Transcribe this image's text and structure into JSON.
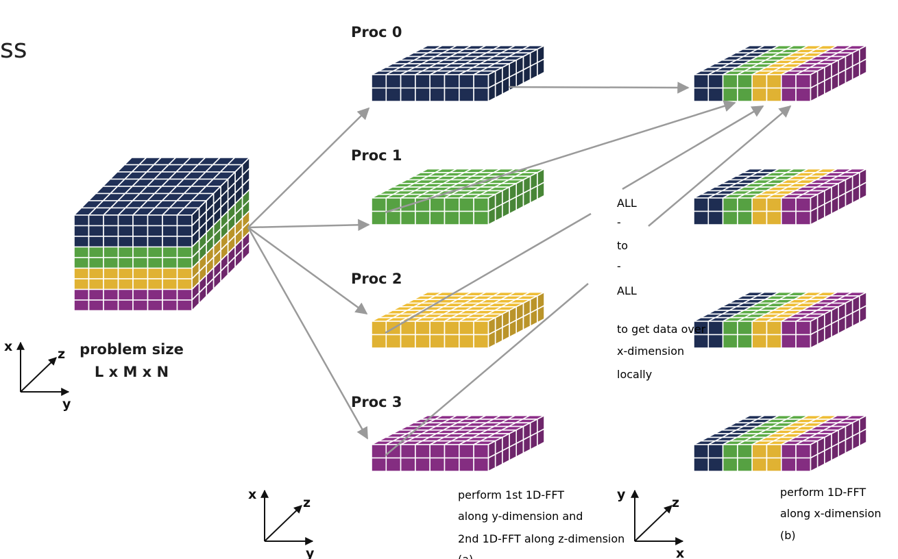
{
  "colors": {
    "navy": "#1f2f55",
    "green": "#5aa845",
    "yellow": "#e9b935",
    "purple": "#8a2f86",
    "arrow": "#9a9a9a",
    "grid": "#ffffff"
  },
  "header_fragment": "ss",
  "cube": {
    "caption_line1": "problem size",
    "caption_line2": "L x M x N",
    "axis": {
      "up": "x",
      "depth": "z",
      "right": "y"
    }
  },
  "procs": [
    {
      "label": "Proc 0",
      "color": "navy"
    },
    {
      "label": "Proc 1",
      "color": "green"
    },
    {
      "label": "Proc 2",
      "color": "yellow"
    },
    {
      "label": "Proc 3",
      "color": "purple"
    }
  ],
  "all_to_all": {
    "lines": [
      "ALL",
      "-",
      "to",
      "-",
      "ALL"
    ],
    "note": [
      "to get data over",
      "x-dimension",
      "locally"
    ]
  },
  "caption_a": {
    "lines": [
      "perform 1st 1D-FFT",
      "along y-dimension and",
      "2nd 1D-FFT along z-dimension",
      "(a)"
    ],
    "axis": {
      "up": "x",
      "depth": "z",
      "right": "y"
    }
  },
  "caption_b": {
    "lines": [
      "perform 1D-FFT",
      "along x-dimension",
      "(b)"
    ],
    "axis": {
      "up": "y",
      "depth": "z",
      "right": "x"
    }
  },
  "result_band_order": [
    "navy",
    "green",
    "yellow",
    "purple"
  ]
}
